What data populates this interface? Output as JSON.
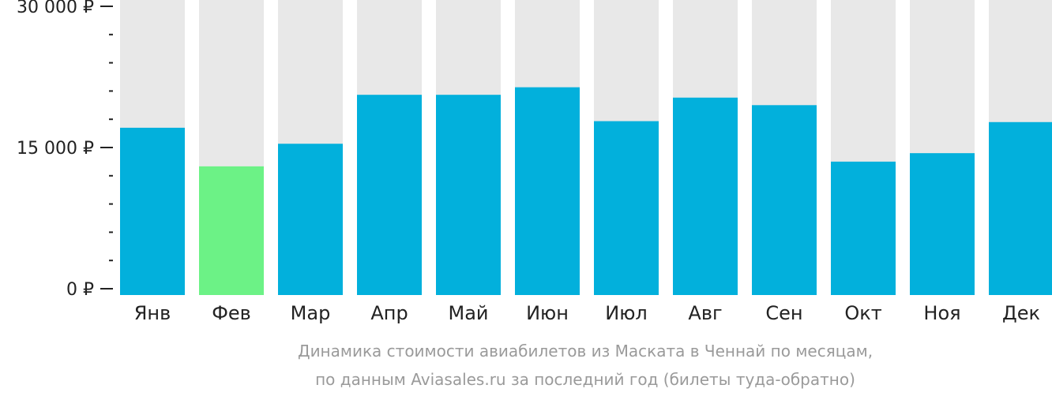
{
  "chart_data": {
    "type": "bar",
    "categories": [
      "Янв",
      "Фев",
      "Мар",
      "Апр",
      "Май",
      "Июн",
      "Июл",
      "Авг",
      "Сен",
      "Окт",
      "Ноя",
      "Дек"
    ],
    "values": [
      17100,
      13000,
      15400,
      20600,
      20600,
      21400,
      17800,
      20300,
      19500,
      13500,
      14400,
      17700
    ],
    "highlight_index": 1,
    "ylim": [
      0,
      30000
    ],
    "y_ticks": [
      {
        "value": 0,
        "label": "0 ₽"
      },
      {
        "value": 15000,
        "label": "15 000 ₽"
      },
      {
        "value": 30000,
        "label": "30 000 ₽"
      }
    ],
    "minor_tick_step": 3000,
    "caption_lines": [
      "Динамика стоимости авиабилетов из Маската в Ченнай по месяцам,",
      "по данным Aviasales.ru за последний год (билеты туда-обратно)"
    ],
    "colors": {
      "bar": "#02b0dc",
      "highlight": "#6cf286",
      "background_bar": "#e8e8e8",
      "axis": "#222222",
      "caption": "#9a9a9a"
    }
  }
}
